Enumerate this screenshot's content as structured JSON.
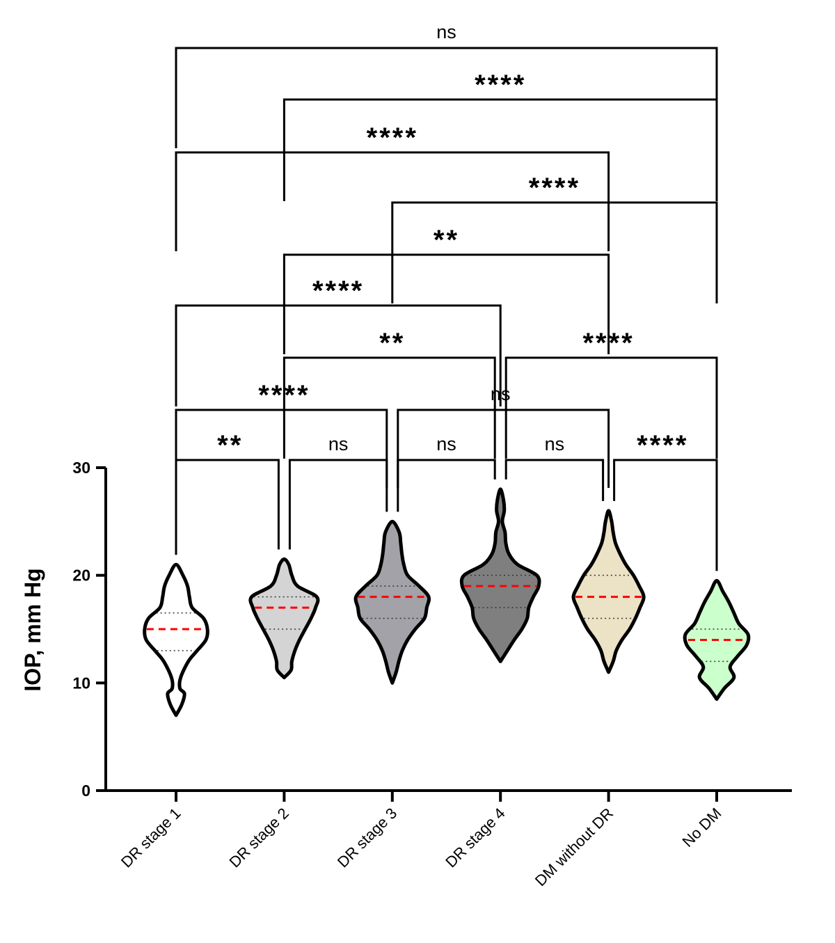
{
  "chart_data": {
    "type": "violin",
    "title": "",
    "xlabel": "",
    "ylabel": "IOP, mm Hg",
    "ylim": [
      0,
      30
    ],
    "yticks": [
      0,
      10,
      20,
      30
    ],
    "grid": false,
    "categories": [
      "DR stage 1",
      "DR stage 2",
      "DR stage 3",
      "DR stage 4",
      "DM without DR",
      "No DM"
    ],
    "series": [
      {
        "category": "DR stage 1",
        "fill": "#ffffff",
        "median": 15,
        "q1": 13,
        "q3": 16.5,
        "min": 7,
        "max": 21,
        "density": [
          [
            7,
            0.05
          ],
          [
            8,
            0.15
          ],
          [
            9,
            0.22
          ],
          [
            9.5,
            0.1
          ],
          [
            10.5,
            0.12
          ],
          [
            12,
            0.32
          ],
          [
            13,
            0.55
          ],
          [
            14,
            0.78
          ],
          [
            15,
            0.82
          ],
          [
            16,
            0.72
          ],
          [
            17,
            0.42
          ],
          [
            18,
            0.35
          ],
          [
            19,
            0.3
          ],
          [
            20,
            0.18
          ],
          [
            21,
            0.05
          ]
        ]
      },
      {
        "category": "DR stage 2",
        "fill": "#d4d4d4",
        "median": 17,
        "q1": 15,
        "q3": 18,
        "min": 10.5,
        "max": 21.5,
        "density": [
          [
            10.5,
            0.05
          ],
          [
            11.2,
            0.18
          ],
          [
            12,
            0.2
          ],
          [
            13,
            0.28
          ],
          [
            14,
            0.4
          ],
          [
            15,
            0.55
          ],
          [
            16,
            0.7
          ],
          [
            17,
            0.82
          ],
          [
            18,
            0.85
          ],
          [
            19,
            0.35
          ],
          [
            20,
            0.2
          ],
          [
            21,
            0.12
          ],
          [
            21.5,
            0.05
          ]
        ]
      },
      {
        "category": "DR stage 3",
        "fill": "#a2a2a8",
        "median": 18,
        "q1": 16,
        "q3": 19,
        "min": 10,
        "max": 25,
        "density": [
          [
            10,
            0.05
          ],
          [
            11,
            0.1
          ],
          [
            12,
            0.17
          ],
          [
            13,
            0.26
          ],
          [
            14,
            0.4
          ],
          [
            15,
            0.6
          ],
          [
            16,
            0.84
          ],
          [
            17,
            0.9
          ],
          [
            18,
            0.95
          ],
          [
            19,
            0.7
          ],
          [
            20,
            0.4
          ],
          [
            21,
            0.3
          ],
          [
            22,
            0.25
          ],
          [
            23,
            0.22
          ],
          [
            24,
            0.18
          ],
          [
            25,
            0.05
          ]
        ]
      },
      {
        "category": "DR stage 4",
        "fill": "#7f7f7f",
        "median": 19,
        "q1": 17,
        "q3": 20,
        "min": 12,
        "max": 28,
        "density": [
          [
            12,
            0.05
          ],
          [
            13,
            0.18
          ],
          [
            14,
            0.36
          ],
          [
            15,
            0.56
          ],
          [
            16,
            0.7
          ],
          [
            17,
            0.74
          ],
          [
            18,
            0.86
          ],
          [
            19,
            1.0
          ],
          [
            20,
            0.95
          ],
          [
            21,
            0.45
          ],
          [
            22,
            0.22
          ],
          [
            23,
            0.14
          ],
          [
            24,
            0.12
          ],
          [
            25,
            0.05
          ],
          [
            26,
            0.1
          ],
          [
            27,
            0.08
          ],
          [
            28,
            0.05
          ]
        ]
      },
      {
        "category": "DM without DR",
        "fill": "#ece2c6",
        "median": 18,
        "q1": 16,
        "q3": 20,
        "min": 11,
        "max": 26,
        "density": [
          [
            11,
            0.05
          ],
          [
            12,
            0.12
          ],
          [
            13,
            0.2
          ],
          [
            14,
            0.35
          ],
          [
            15,
            0.55
          ],
          [
            16,
            0.7
          ],
          [
            17,
            0.82
          ],
          [
            18,
            0.92
          ],
          [
            19,
            0.8
          ],
          [
            20,
            0.65
          ],
          [
            21,
            0.45
          ],
          [
            22,
            0.3
          ],
          [
            23,
            0.18
          ],
          [
            24,
            0.12
          ],
          [
            25,
            0.08
          ],
          [
            26,
            0.05
          ]
        ]
      },
      {
        "category": "No DM",
        "fill": "#cbffcb",
        "median": 14,
        "q1": 12,
        "q3": 15,
        "min": 8.5,
        "max": 19.5,
        "density": [
          [
            8.5,
            0.05
          ],
          [
            9.5,
            0.2
          ],
          [
            10.5,
            0.45
          ],
          [
            11.5,
            0.35
          ],
          [
            12.5,
            0.55
          ],
          [
            13.5,
            0.78
          ],
          [
            14.5,
            0.82
          ],
          [
            15.5,
            0.58
          ],
          [
            16.5,
            0.45
          ],
          [
            17.5,
            0.32
          ],
          [
            18.5,
            0.16
          ],
          [
            19.5,
            0.05
          ]
        ]
      }
    ],
    "median_line_color": "#ff0000",
    "outline_color": "#000000",
    "comparisons": [
      {
        "from": 0,
        "to": 1,
        "label": "**",
        "level": 0
      },
      {
        "from": 1,
        "to": 2,
        "label": "ns",
        "level": 0
      },
      {
        "from": 2,
        "to": 3,
        "label": "ns",
        "level": 0
      },
      {
        "from": 3,
        "to": 4,
        "label": "ns",
        "level": 0
      },
      {
        "from": 4,
        "to": 5,
        "label": "****",
        "level": 0
      },
      {
        "from": 0,
        "to": 2,
        "label": "****",
        "level": 1
      },
      {
        "from": 2,
        "to": 4,
        "label": "ns",
        "level": 1
      },
      {
        "from": 1,
        "to": 3,
        "label": "**",
        "level": 2
      },
      {
        "from": 3,
        "to": 5,
        "label": "****",
        "level": 2
      },
      {
        "from": 0,
        "to": 3,
        "label": "****",
        "level": 3
      },
      {
        "from": 1,
        "to": 4,
        "label": "**",
        "level": 4
      },
      {
        "from": 2,
        "to": 5,
        "label": "****",
        "level": 5
      },
      {
        "from": 0,
        "to": 4,
        "label": "****",
        "level": 6
      },
      {
        "from": 1,
        "to": 5,
        "label": "****",
        "level": 7
      },
      {
        "from": 0,
        "to": 5,
        "label": "ns",
        "level": 8
      }
    ]
  }
}
